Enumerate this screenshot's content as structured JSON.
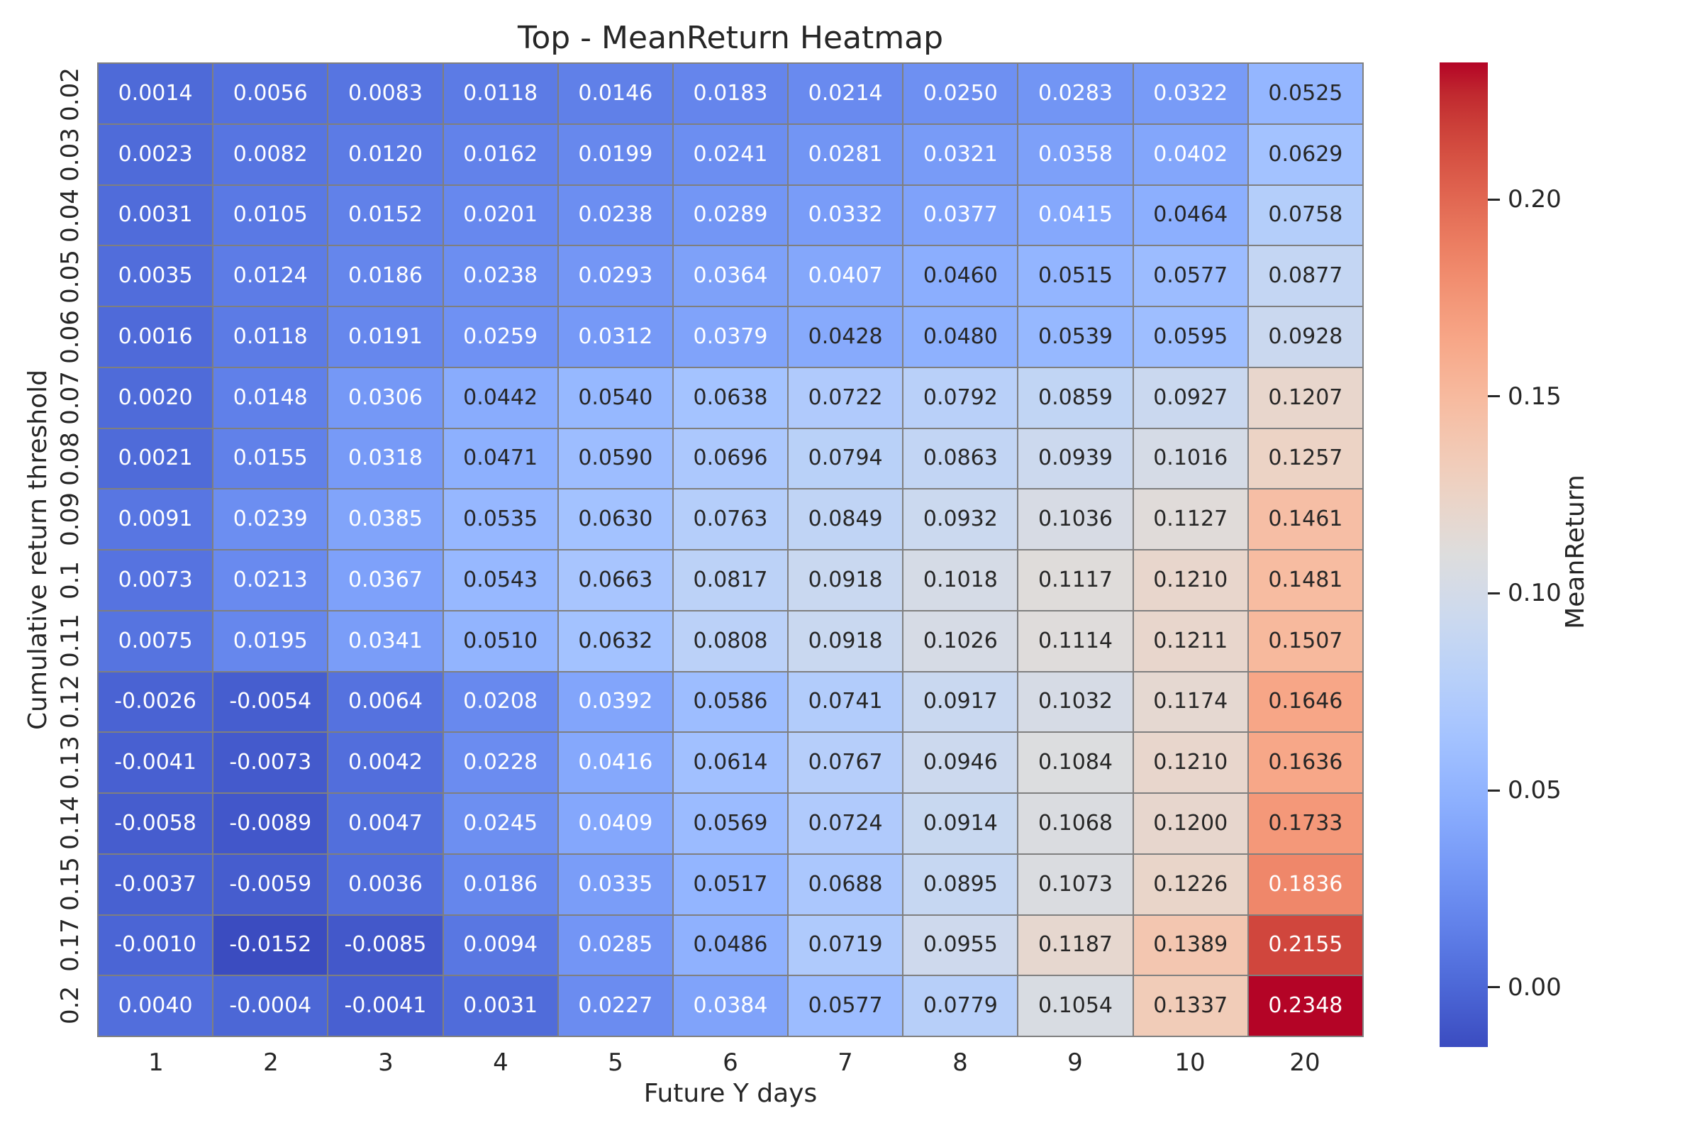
{
  "figure": {
    "background_color": "#ffffff",
    "text_color": "#262626"
  },
  "chart_data": {
    "type": "heatmap",
    "title": "Top - MeanReturn Heatmap",
    "xlabel": "Future Y days",
    "ylabel": "Cumulative return threshold",
    "x_tick_labels": [
      "1",
      "2",
      "3",
      "4",
      "5",
      "6",
      "7",
      "8",
      "9",
      "10",
      "20"
    ],
    "y_tick_labels": [
      "0.02",
      "0.03",
      "0.04",
      "0.05",
      "0.06",
      "0.07",
      "0.08",
      "0.09",
      "0.1",
      "0.11",
      "0.12",
      "0.13",
      "0.14",
      "0.15",
      "0.17",
      "0.2"
    ],
    "values": [
      [
        0.0014,
        0.0056,
        0.0083,
        0.0118,
        0.0146,
        0.0183,
        0.0214,
        0.025,
        0.0283,
        0.0322,
        0.0525
      ],
      [
        0.0023,
        0.0082,
        0.012,
        0.0162,
        0.0199,
        0.0241,
        0.0281,
        0.0321,
        0.0358,
        0.0402,
        0.0629
      ],
      [
        0.0031,
        0.0105,
        0.0152,
        0.0201,
        0.0238,
        0.0289,
        0.0332,
        0.0377,
        0.0415,
        0.0464,
        0.0758
      ],
      [
        0.0035,
        0.0124,
        0.0186,
        0.0238,
        0.0293,
        0.0364,
        0.0407,
        0.046,
        0.0515,
        0.0577,
        0.0877
      ],
      [
        0.0016,
        0.0118,
        0.0191,
        0.0259,
        0.0312,
        0.0379,
        0.0428,
        0.048,
        0.0539,
        0.0595,
        0.0928
      ],
      [
        0.002,
        0.0148,
        0.0306,
        0.0442,
        0.054,
        0.0638,
        0.0722,
        0.0792,
        0.0859,
        0.0927,
        0.1207
      ],
      [
        0.0021,
        0.0155,
        0.0318,
        0.0471,
        0.059,
        0.0696,
        0.0794,
        0.0863,
        0.0939,
        0.1016,
        0.1257
      ],
      [
        0.0091,
        0.0239,
        0.0385,
        0.0535,
        0.063,
        0.0763,
        0.0849,
        0.0932,
        0.1036,
        0.1127,
        0.1461
      ],
      [
        0.0073,
        0.0213,
        0.0367,
        0.0543,
        0.0663,
        0.0817,
        0.0918,
        0.1018,
        0.1117,
        0.121,
        0.1481
      ],
      [
        0.0075,
        0.0195,
        0.0341,
        0.051,
        0.0632,
        0.0808,
        0.0918,
        0.1026,
        0.1114,
        0.1211,
        0.1507
      ],
      [
        -0.0026,
        -0.0054,
        0.0064,
        0.0208,
        0.0392,
        0.0586,
        0.0741,
        0.0917,
        0.1032,
        0.1174,
        0.1646
      ],
      [
        -0.0041,
        -0.0073,
        0.0042,
        0.0228,
        0.0416,
        0.0614,
        0.0767,
        0.0946,
        0.1084,
        0.121,
        0.1636
      ],
      [
        -0.0058,
        -0.0089,
        0.0047,
        0.0245,
        0.0409,
        0.0569,
        0.0724,
        0.0914,
        0.1068,
        0.12,
        0.1733
      ],
      [
        -0.0037,
        -0.0059,
        0.0036,
        0.0186,
        0.0335,
        0.0517,
        0.0688,
        0.0895,
        0.1073,
        0.1226,
        0.1836
      ],
      [
        -0.001,
        -0.0152,
        -0.0085,
        0.0094,
        0.0285,
        0.0486,
        0.0719,
        0.0955,
        0.1187,
        0.1389,
        0.2155
      ],
      [
        0.004,
        -0.0004,
        -0.0041,
        0.0031,
        0.0227,
        0.0384,
        0.0577,
        0.0779,
        0.1054,
        0.1337,
        0.2348
      ]
    ],
    "value_decimals": 4,
    "vmin": -0.0152,
    "vmax": 0.2348,
    "grid_on": false,
    "colorbar": {
      "label": "MeanReturn",
      "position": "right",
      "tick_values": [
        0.2,
        0.15,
        0.1,
        0.05,
        0.0
      ],
      "tick_labels": [
        "0.20",
        "0.15",
        "0.10",
        "0.05",
        "0.00"
      ]
    },
    "colormap": {
      "name": "coolwarm",
      "stops": [
        "#3B4CC0",
        "#445ACC",
        "#4D68D7",
        "#5775E1",
        "#6282EA",
        "#6C8EF1",
        "#779AF7",
        "#82A5FB",
        "#8DB0FE",
        "#98B9FF",
        "#A3C2FF",
        "#AEC9FD",
        "#B8D0F9",
        "#C2D5F4",
        "#CCD9EE",
        "#D5DBE6",
        "#DDDDDD",
        "#E5D8D1",
        "#ECD3C5",
        "#F1CCB9",
        "#F4C4AD",
        "#F7BBA0",
        "#F7B194",
        "#F7A687",
        "#F49A7B",
        "#F18D6F",
        "#EC7F63",
        "#E57058",
        "#DE604D",
        "#D55042",
        "#CB3E38",
        "#C0282F",
        "#B40426"
      ]
    },
    "cell_border_color": "#7f7f7f",
    "annotation_colors": {
      "light_text": "#ffffff",
      "dark_text": "#262626",
      "luminance_threshold": 0.408
    }
  }
}
